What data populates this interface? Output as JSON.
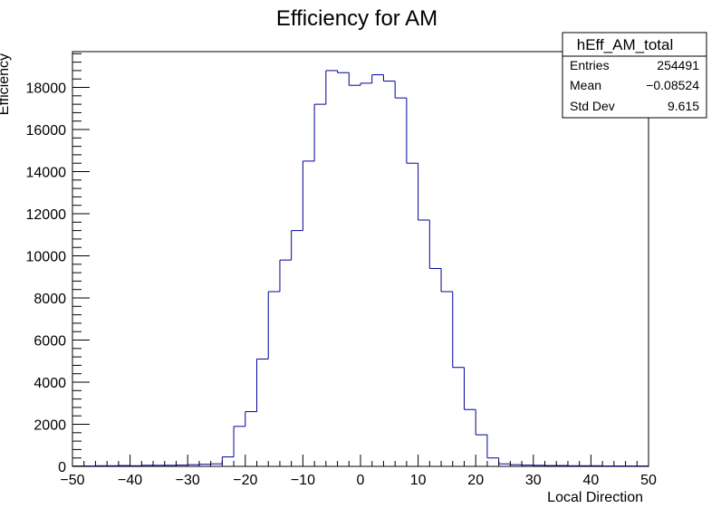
{
  "chart_data": {
    "type": "bar",
    "title": "Efficiency for AM",
    "xlabel": "Local Direction",
    "ylabel": "Efficiency",
    "xlim": [
      -50,
      50
    ],
    "ylim": [
      0,
      19700
    ],
    "x_ticks": [
      -50,
      -40,
      -30,
      -20,
      -10,
      0,
      10,
      20,
      30,
      40,
      50
    ],
    "y_ticks": [
      0,
      2000,
      4000,
      6000,
      8000,
      10000,
      12000,
      14000,
      16000,
      18000
    ],
    "x_tick_labels": [
      "−50",
      "−40",
      "−30",
      "−20",
      "−10",
      "0",
      "10",
      "20",
      "30",
      "40",
      "50"
    ],
    "y_tick_labels": [
      "0",
      "2000",
      "4000",
      "6000",
      "8000",
      "10000",
      "12000",
      "14000",
      "16000",
      "18000"
    ],
    "bin_edges": [
      -50,
      -48,
      -46,
      -44,
      -42,
      -40,
      -38,
      -36,
      -34,
      -32,
      -30,
      -28,
      -26,
      -24,
      -22,
      -20,
      -18,
      -16,
      -14,
      -12,
      -10,
      -8,
      -6,
      -4,
      -2,
      0,
      2,
      4,
      6,
      8,
      10,
      12,
      14,
      16,
      18,
      20,
      22,
      24,
      26,
      28,
      30,
      32,
      34,
      36,
      38,
      40,
      42,
      44,
      46,
      48,
      50
    ],
    "values": [
      20,
      20,
      30,
      30,
      40,
      30,
      50,
      50,
      50,
      60,
      80,
      100,
      120,
      450,
      1900,
      2600,
      5100,
      8300,
      9800,
      11200,
      14500,
      17200,
      18800,
      18700,
      18100,
      18200,
      18600,
      18300,
      17500,
      14400,
      11700,
      9400,
      8300,
      4700,
      2700,
      1500,
      400,
      120,
      80,
      60,
      50,
      40,
      40,
      30,
      30,
      30,
      20,
      20,
      20,
      20
    ],
    "line_color": "#000099",
    "grid": false,
    "legend": "none"
  },
  "stats_box": {
    "title": "hEff_AM_total",
    "rows": [
      {
        "label": "Entries",
        "value": "254491"
      },
      {
        "label": "Mean",
        "value": "−0.08524"
      },
      {
        "label": "Std Dev",
        "value": "9.615"
      }
    ]
  }
}
